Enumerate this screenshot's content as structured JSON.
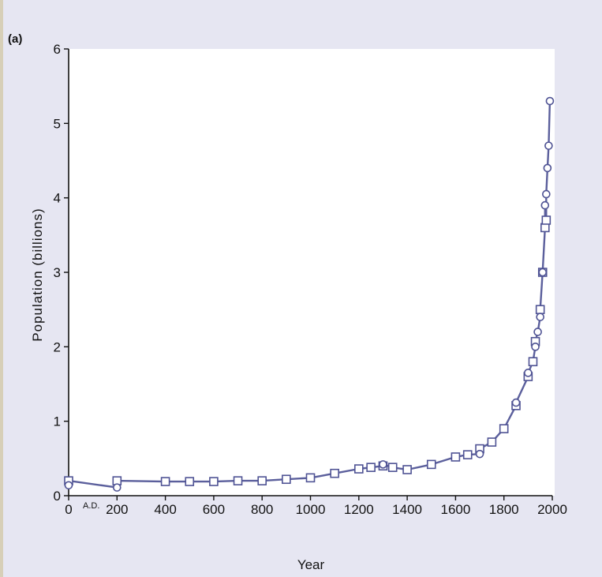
{
  "panel_label": "(a)",
  "colors": {
    "background": "#e6e6f2",
    "plot_area": "#ffffff",
    "line": "#5b5f9c",
    "marker_edge": "#4f5394",
    "marker_fill": "#ffffff",
    "axis": "#111111"
  },
  "chart_data": {
    "type": "line",
    "title": "",
    "xlabel": "Year",
    "ylabel": "Population (billions)",
    "xlim": [
      0,
      2000
    ],
    "ylim": [
      0,
      6
    ],
    "x_ticks": [
      {
        "value": 0,
        "label": "0"
      },
      {
        "value": 200,
        "label": "200"
      },
      {
        "value": 400,
        "label": "400"
      },
      {
        "value": 600,
        "label": "600"
      },
      {
        "value": 800,
        "label": "800"
      },
      {
        "value": 1000,
        "label": "1000"
      },
      {
        "value": 1200,
        "label": "1200"
      },
      {
        "value": 1400,
        "label": "1400"
      },
      {
        "value": 1600,
        "label": "1600"
      },
      {
        "value": 1800,
        "label": "1800"
      },
      {
        "value": 2000,
        "label": "2000"
      }
    ],
    "x_annotation": "A.D.",
    "y_ticks": [
      {
        "value": 0,
        "label": "0"
      },
      {
        "value": 1,
        "label": "1"
      },
      {
        "value": 2,
        "label": "2"
      },
      {
        "value": 3,
        "label": "3"
      },
      {
        "value": 4,
        "label": "4"
      },
      {
        "value": 5,
        "label": "5"
      },
      {
        "value": 6,
        "label": "6"
      }
    ],
    "grid": false,
    "series": [
      {
        "marker": "square",
        "x": [
          0,
          200,
          400,
          500,
          600,
          700,
          800,
          900,
          1000,
          1100,
          1200,
          1250,
          1300,
          1340,
          1400,
          1500,
          1600,
          1650,
          1700,
          1750,
          1800,
          1850,
          1900,
          1920,
          1930,
          1950,
          1960,
          1970,
          1975
        ],
        "y": [
          0.2,
          0.2,
          0.19,
          0.19,
          0.19,
          0.2,
          0.2,
          0.22,
          0.24,
          0.3,
          0.36,
          0.38,
          0.4,
          0.38,
          0.35,
          0.42,
          0.52,
          0.55,
          0.63,
          0.72,
          0.9,
          1.21,
          1.6,
          1.8,
          2.07,
          2.5,
          3.0,
          3.6,
          3.7
        ]
      },
      {
        "marker": "circle",
        "x": [
          0,
          200,
          1300,
          1700,
          1850,
          1900,
          1930,
          1940,
          1950,
          1960,
          1970,
          1975,
          1980,
          1985,
          1990
        ],
        "y": [
          0.14,
          0.11,
          0.42,
          0.56,
          1.25,
          1.65,
          2.0,
          2.2,
          2.4,
          3.0,
          3.9,
          4.05,
          4.4,
          4.7,
          5.3
        ]
      }
    ]
  }
}
